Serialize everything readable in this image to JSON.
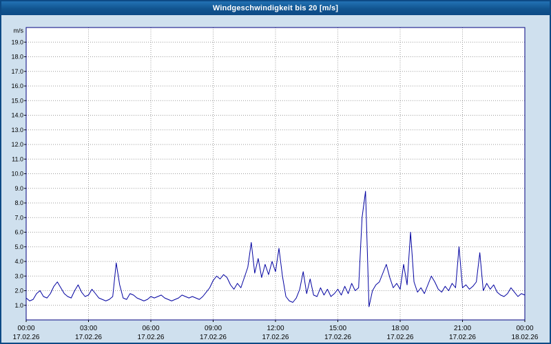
{
  "window": {
    "title": "Windgeschwindigkeit bis 20 [m/s]"
  },
  "chart_data": {
    "type": "line",
    "title": "Windgeschwindigkeit bis 20 [m/s]",
    "xlabel": "",
    "ylabel": "m/s",
    "ylim": [
      0,
      20
    ],
    "grid": true,
    "legend": "none",
    "y_ticks": [
      "1.0",
      "2.0",
      "3.0",
      "4.0",
      "5.0",
      "6.0",
      "7.0",
      "8.0",
      "9.0",
      "10.0",
      "11.0",
      "12.0",
      "13.0",
      "14.0",
      "15.0",
      "16.0",
      "17.0",
      "18.0",
      "19.0"
    ],
    "x_ticks": [
      {
        "hour": 0,
        "time": "00:00",
        "date": "17.02.26"
      },
      {
        "hour": 3,
        "time": "03:00",
        "date": "17.02.26"
      },
      {
        "hour": 6,
        "time": "06:00",
        "date": "17.02.26"
      },
      {
        "hour": 9,
        "time": "09:00",
        "date": "17.02.26"
      },
      {
        "hour": 12,
        "time": "12:00",
        "date": "17.02.26"
      },
      {
        "hour": 15,
        "time": "15:00",
        "date": "17.02.26"
      },
      {
        "hour": 18,
        "time": "18:00",
        "date": "17.02.26"
      },
      {
        "hour": 21,
        "time": "21:00",
        "date": "17.02.26"
      },
      {
        "hour": 24,
        "time": "00:00",
        "date": "18.02.26"
      }
    ],
    "series": [
      {
        "name": "Windgeschwindigkeit",
        "unit": "m/s",
        "color": "#0000a0",
        "interval_minutes": 10,
        "start_time": "00:00",
        "values": [
          1.5,
          1.3,
          1.4,
          1.8,
          2.0,
          1.6,
          1.5,
          1.8,
          2.3,
          2.6,
          2.2,
          1.8,
          1.6,
          1.5,
          2.0,
          2.4,
          1.9,
          1.6,
          1.7,
          2.1,
          1.8,
          1.5,
          1.4,
          1.3,
          1.4,
          1.6,
          3.9,
          2.4,
          1.5,
          1.4,
          1.8,
          1.7,
          1.5,
          1.4,
          1.3,
          1.4,
          1.6,
          1.5,
          1.6,
          1.7,
          1.5,
          1.4,
          1.3,
          1.4,
          1.5,
          1.7,
          1.6,
          1.5,
          1.6,
          1.5,
          1.4,
          1.6,
          1.9,
          2.2,
          2.7,
          3.0,
          2.8,
          3.1,
          2.9,
          2.4,
          2.1,
          2.5,
          2.2,
          2.9,
          3.6,
          5.3,
          3.2,
          4.2,
          2.9,
          3.8,
          3.1,
          4.0,
          3.3,
          4.9,
          3.0,
          1.6,
          1.3,
          1.2,
          1.5,
          2.1,
          3.3,
          1.8,
          2.8,
          1.7,
          1.6,
          2.2,
          1.7,
          2.1,
          1.6,
          1.8,
          2.1,
          1.7,
          2.3,
          1.8,
          2.5,
          2.0,
          2.2,
          7.0,
          8.8,
          0.9,
          2.0,
          2.4,
          2.6,
          3.2,
          3.8,
          2.9,
          2.2,
          2.5,
          2.1,
          3.8,
          2.4,
          6.0,
          2.6,
          1.9,
          2.2,
          1.8,
          2.4,
          3.0,
          2.6,
          2.1,
          1.9,
          2.3,
          2.0,
          2.5,
          2.2,
          5.0,
          2.2,
          2.4,
          2.1,
          2.3,
          2.6,
          4.6,
          2.0,
          2.5,
          2.1,
          2.4,
          1.9,
          1.7,
          1.6,
          1.8,
          2.2,
          1.9,
          1.6,
          1.8,
          1.7
        ]
      }
    ],
    "colors": {
      "window_background": "#cfe0ee",
      "plot_background": "#ffffff",
      "plot_border": "#00007f",
      "gridline": "#9a9a9a",
      "line": "#0000a0",
      "titlebar": "#11548f",
      "title_text": "#ffffff"
    }
  }
}
